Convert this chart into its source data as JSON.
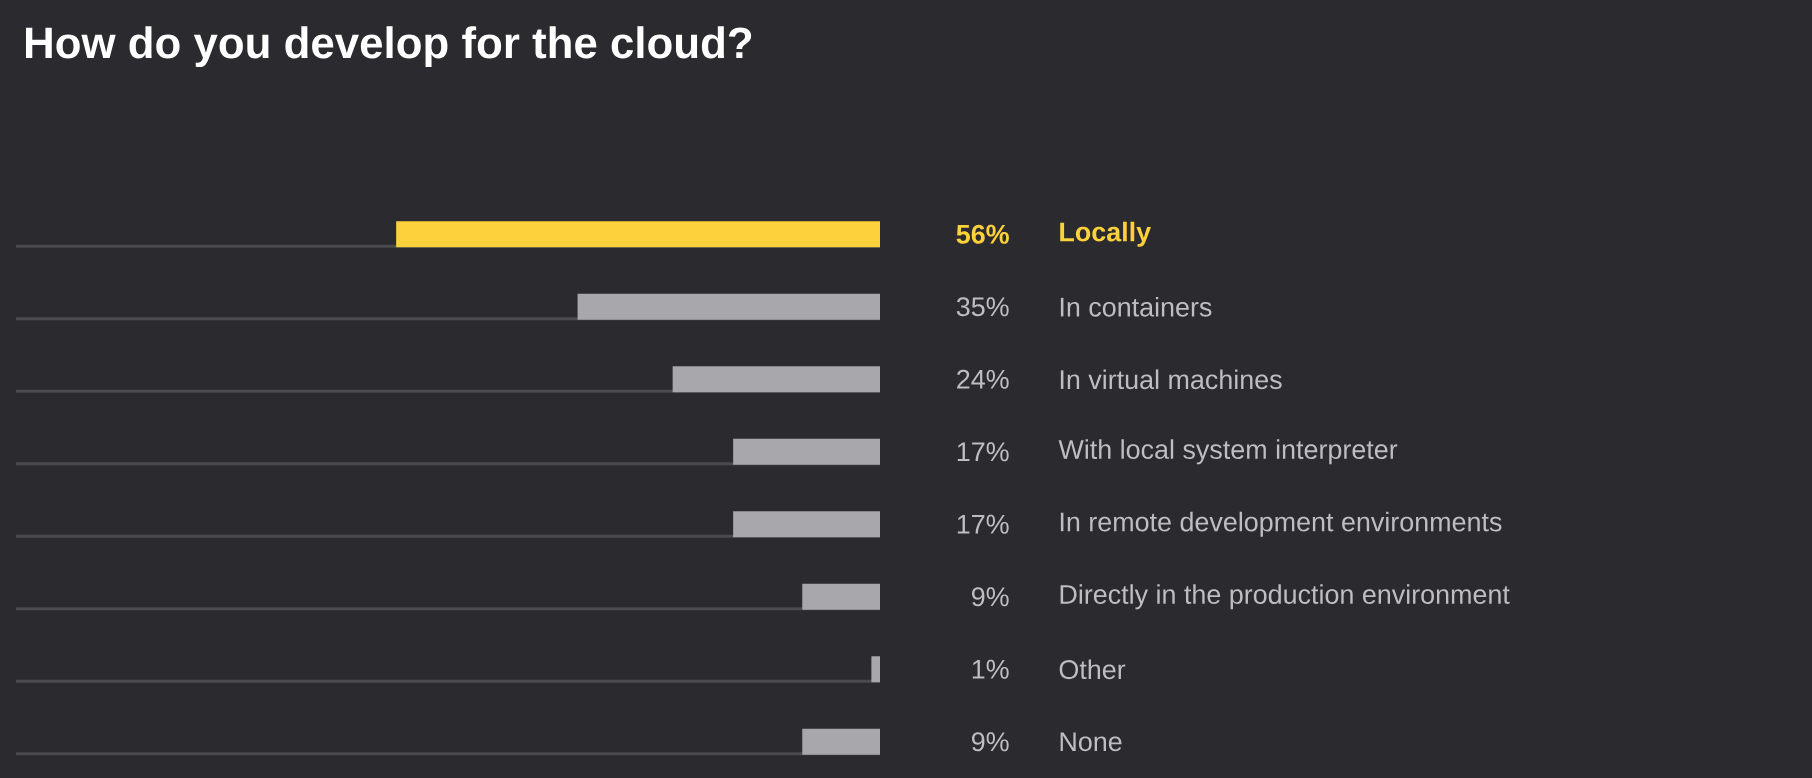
{
  "chart_data": {
    "type": "bar",
    "orientation": "horizontal",
    "title": "How do you develop for the cloud?",
    "categories": [
      "Locally",
      "In containers",
      "In virtual machines",
      "With local system interpreter",
      "In remote development environments",
      "Directly in the production environment",
      "Other",
      "None"
    ],
    "series": [
      {
        "color": "#4a4a50",
        "values": [
          100,
          100,
          100,
          100,
          100,
          100,
          100,
          100
        ]
      },
      {
        "colors": [
          "#fdd13b",
          "#a8a7ac",
          "#a8a7ac",
          "#a8a7ac",
          "#a8a7ac",
          "#a8a7ac",
          "#a8a7ac",
          "#a8a7ac"
        ],
        "values": [
          56,
          35,
          24,
          17,
          17,
          9,
          1,
          9
        ],
        "value_labels": [
          "56%",
          "35%",
          "24%",
          "17%",
          "17%",
          "9%",
          "1%",
          "9%"
        ]
      }
    ],
    "xlim": [
      100,
      0
    ]
  }
}
